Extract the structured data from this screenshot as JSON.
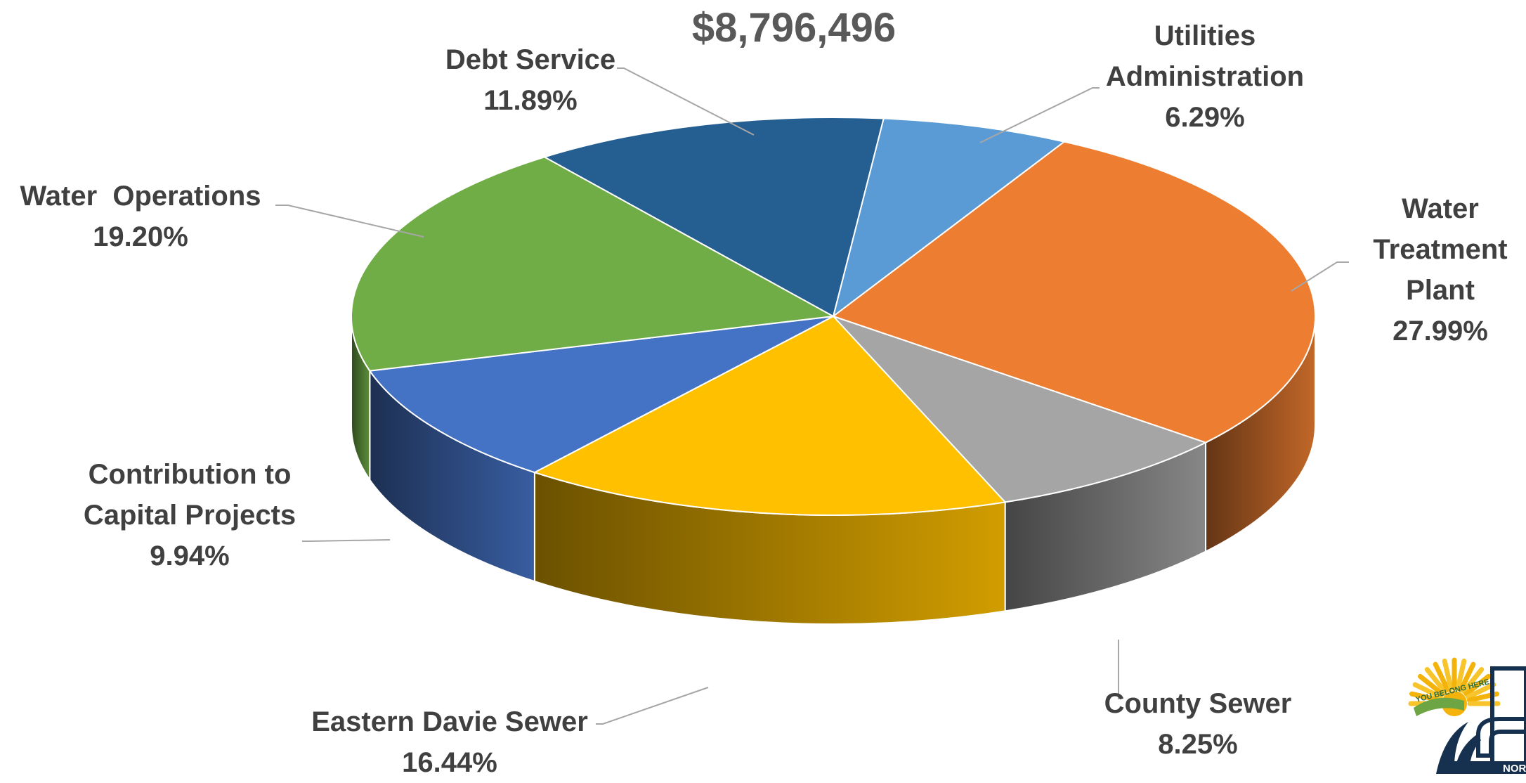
{
  "chart_data": {
    "type": "pie",
    "title": "$8,796,496",
    "slices": [
      {
        "name": "Utilities Administration",
        "value": 6.29,
        "label_lines": [
          "Utilities",
          "Administration"
        ],
        "pct_label": "6.29%",
        "color": "#5B9BD5"
      },
      {
        "name": "Water Treatment Plant",
        "value": 27.99,
        "label_lines": [
          "Water",
          "Treatment",
          "Plant"
        ],
        "pct_label": "27.99%",
        "color": "#ED7D31"
      },
      {
        "name": "County Sewer",
        "value": 8.25,
        "label_lines": [
          "County Sewer"
        ],
        "pct_label": "8.25%",
        "color": "#A5A5A5"
      },
      {
        "name": "Eastern Davie Sewer",
        "value": 16.44,
        "label_lines": [
          "Eastern Davie Sewer"
        ],
        "pct_label": "16.44%",
        "color": "#FFC000"
      },
      {
        "name": "Contribution to Capital Projects",
        "value": 9.94,
        "label_lines": [
          "Contribution to",
          "Capital Projects"
        ],
        "pct_label": "9.94%",
        "color": "#4472C4"
      },
      {
        "name": "Water  Operations",
        "value": 19.2,
        "label_lines": [
          "Water  Operations"
        ],
        "pct_label": "19.20%",
        "color": "#70AD47"
      },
      {
        "name": "Debt Service",
        "value": 11.89,
        "label_lines": [
          "Debt Service"
        ],
        "pct_label": "11.89%",
        "color": "#255E91"
      }
    ],
    "legend": "none"
  },
  "logo": {
    "tagline": "YOU BELONG HERE",
    "text_fragment": "NOR"
  }
}
